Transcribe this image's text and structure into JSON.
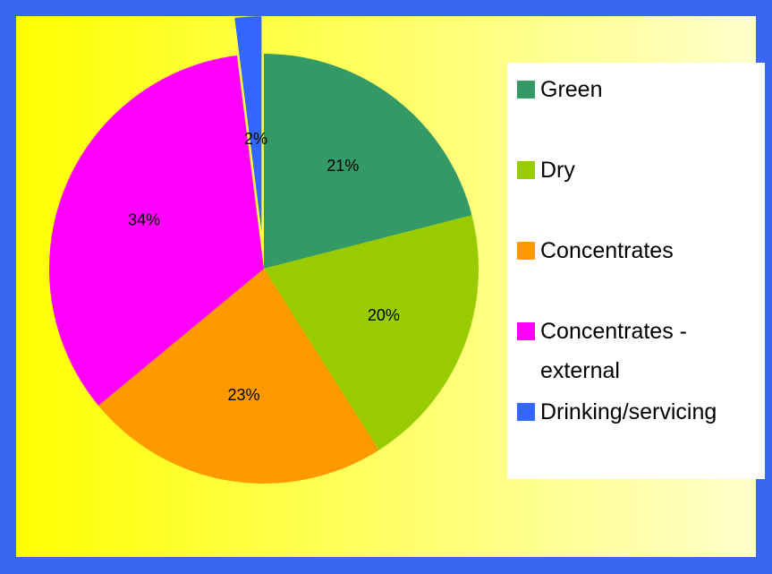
{
  "chart_data": {
    "type": "pie",
    "categories": [
      "Green",
      "Dry",
      "Concentrates",
      "Concentrates - external",
      "Drinking/servicing"
    ],
    "values": [
      21,
      20,
      23,
      34,
      2
    ],
    "value_labels": [
      "21%",
      "20%",
      "23%",
      "34%",
      "2%"
    ],
    "colors": [
      "#339966",
      "#99cc00",
      "#ff9900",
      "#ff00ff",
      "#3366ff"
    ],
    "legend": "right"
  }
}
